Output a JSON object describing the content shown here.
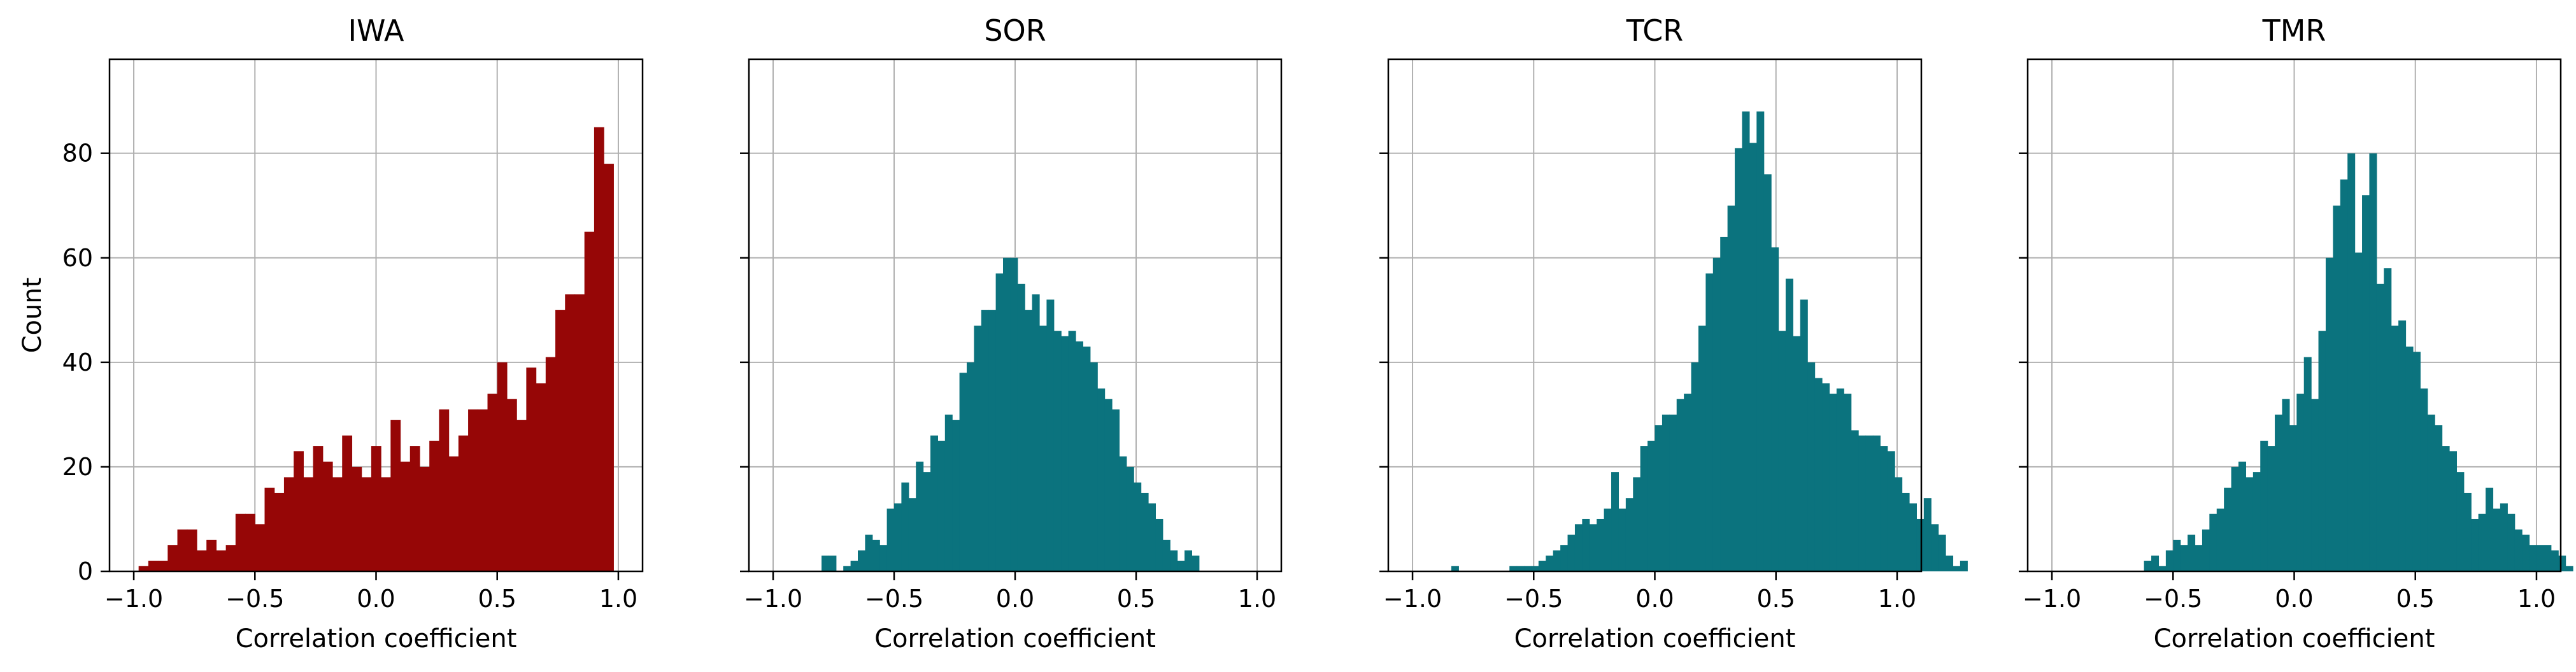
{
  "figure": {
    "ylabel": "Count"
  },
  "chart_data": [
    {
      "type": "bar",
      "title": "IWA",
      "xlabel": "Correlation coefficient",
      "ylabel": "Count",
      "color": "#960606",
      "xlim": [
        -1.1,
        1.1
      ],
      "ylim": [
        0,
        98
      ],
      "xticks": [
        -1.0,
        -0.5,
        0.0,
        0.5,
        1.0
      ],
      "xtick_labels": [
        "−1.0",
        "−0.5",
        "0.0",
        "0.5",
        "1.0"
      ],
      "yticks": [
        0,
        20,
        40,
        60,
        80
      ],
      "ytick_labels": [
        "0",
        "20",
        "40",
        "60",
        "80"
      ],
      "grid": true,
      "bin_start": -0.98,
      "bin_width": 0.04,
      "values": [
        1,
        2,
        2,
        5,
        8,
        8,
        4,
        6,
        4,
        5,
        11,
        11,
        9,
        16,
        15,
        18,
        23,
        18,
        24,
        21,
        18,
        26,
        20,
        18,
        24,
        18,
        29,
        21,
        24,
        20,
        25,
        31,
        22,
        26,
        31,
        31,
        34,
        40,
        33,
        29,
        39,
        36,
        41,
        50,
        53,
        53,
        65,
        85,
        78
      ]
    },
    {
      "type": "bar",
      "title": "SOR",
      "xlabel": "Correlation coefficient",
      "color": "#0b737e",
      "xlim": [
        -1.1,
        1.1
      ],
      "ylim": [
        0,
        98
      ],
      "xticks": [
        -1.0,
        -0.5,
        0.0,
        0.5,
        1.0
      ],
      "xtick_labels": [
        "−1.0",
        "−0.5",
        "0.0",
        "0.5",
        "1.0"
      ],
      "yticks": [
        0,
        20,
        40,
        60,
        80
      ],
      "grid": true,
      "bin_start": -0.8,
      "bin_width": 0.03,
      "values": [
        3,
        3,
        0,
        1,
        2,
        4,
        7,
        6,
        5,
        12,
        13,
        17,
        14,
        21,
        19,
        26,
        25,
        30,
        29,
        38,
        40,
        47,
        50,
        50,
        57,
        60,
        60,
        55,
        50,
        53,
        47,
        52,
        46,
        45,
        46,
        44,
        43,
        40,
        35,
        33,
        31,
        22,
        20,
        17,
        15,
        13,
        10,
        6,
        4,
        2,
        4,
        3
      ]
    },
    {
      "type": "bar",
      "title": "TCR",
      "xlabel": "Correlation coefficient",
      "color": "#0b737e",
      "xlim": [
        -1.1,
        1.1
      ],
      "ylim": [
        0,
        98
      ],
      "xticks": [
        -1.0,
        -0.5,
        0.0,
        0.5,
        1.0
      ],
      "xtick_labels": [
        "−1.0",
        "−0.5",
        "0.0",
        "0.5",
        "1.0"
      ],
      "yticks": [
        0,
        20,
        40,
        60,
        80
      ],
      "grid": true,
      "bin_start": -0.84,
      "bin_width": 0.03,
      "values": [
        1,
        0,
        0,
        0,
        0,
        0,
        0,
        0,
        1,
        1,
        1,
        1,
        2,
        3,
        4,
        5,
        7,
        9,
        10,
        9,
        10,
        12,
        19,
        12,
        14,
        18,
        24,
        25,
        28,
        30,
        30,
        33,
        34,
        40,
        47,
        57,
        60,
        64,
        70,
        81,
        88,
        82,
        88,
        76,
        62,
        46,
        56,
        45,
        52,
        40,
        37,
        36,
        34,
        35,
        34,
        27,
        26,
        26,
        26,
        24,
        23,
        18,
        15,
        13,
        10,
        14,
        9,
        7,
        3,
        1,
        2
      ]
    },
    {
      "type": "bar",
      "title": "TMR",
      "xlabel": "Correlation coefficient",
      "color": "#0b737e",
      "xlim": [
        -1.1,
        1.1
      ],
      "ylim": [
        0,
        98
      ],
      "xticks": [
        -1.0,
        -0.5,
        0.0,
        0.5,
        1.0
      ],
      "xtick_labels": [
        "−1.0",
        "−0.5",
        "0.0",
        "0.5",
        "1.0"
      ],
      "yticks": [
        0,
        20,
        40,
        60,
        80
      ],
      "grid": true,
      "bin_start": -0.62,
      "bin_width": 0.03,
      "values": [
        2,
        3,
        1,
        4,
        6,
        5,
        7,
        5,
        8,
        11,
        12,
        16,
        20,
        21,
        18,
        19,
        25,
        24,
        30,
        33,
        28,
        34,
        41,
        33,
        46,
        60,
        70,
        75,
        80,
        61,
        72,
        80,
        55,
        58,
        47,
        48,
        43,
        42,
        35,
        30,
        28,
        24,
        23,
        19,
        15,
        10,
        11,
        16,
        12,
        13,
        11,
        8,
        7,
        5,
        5,
        5,
        4,
        3,
        1
      ]
    }
  ]
}
